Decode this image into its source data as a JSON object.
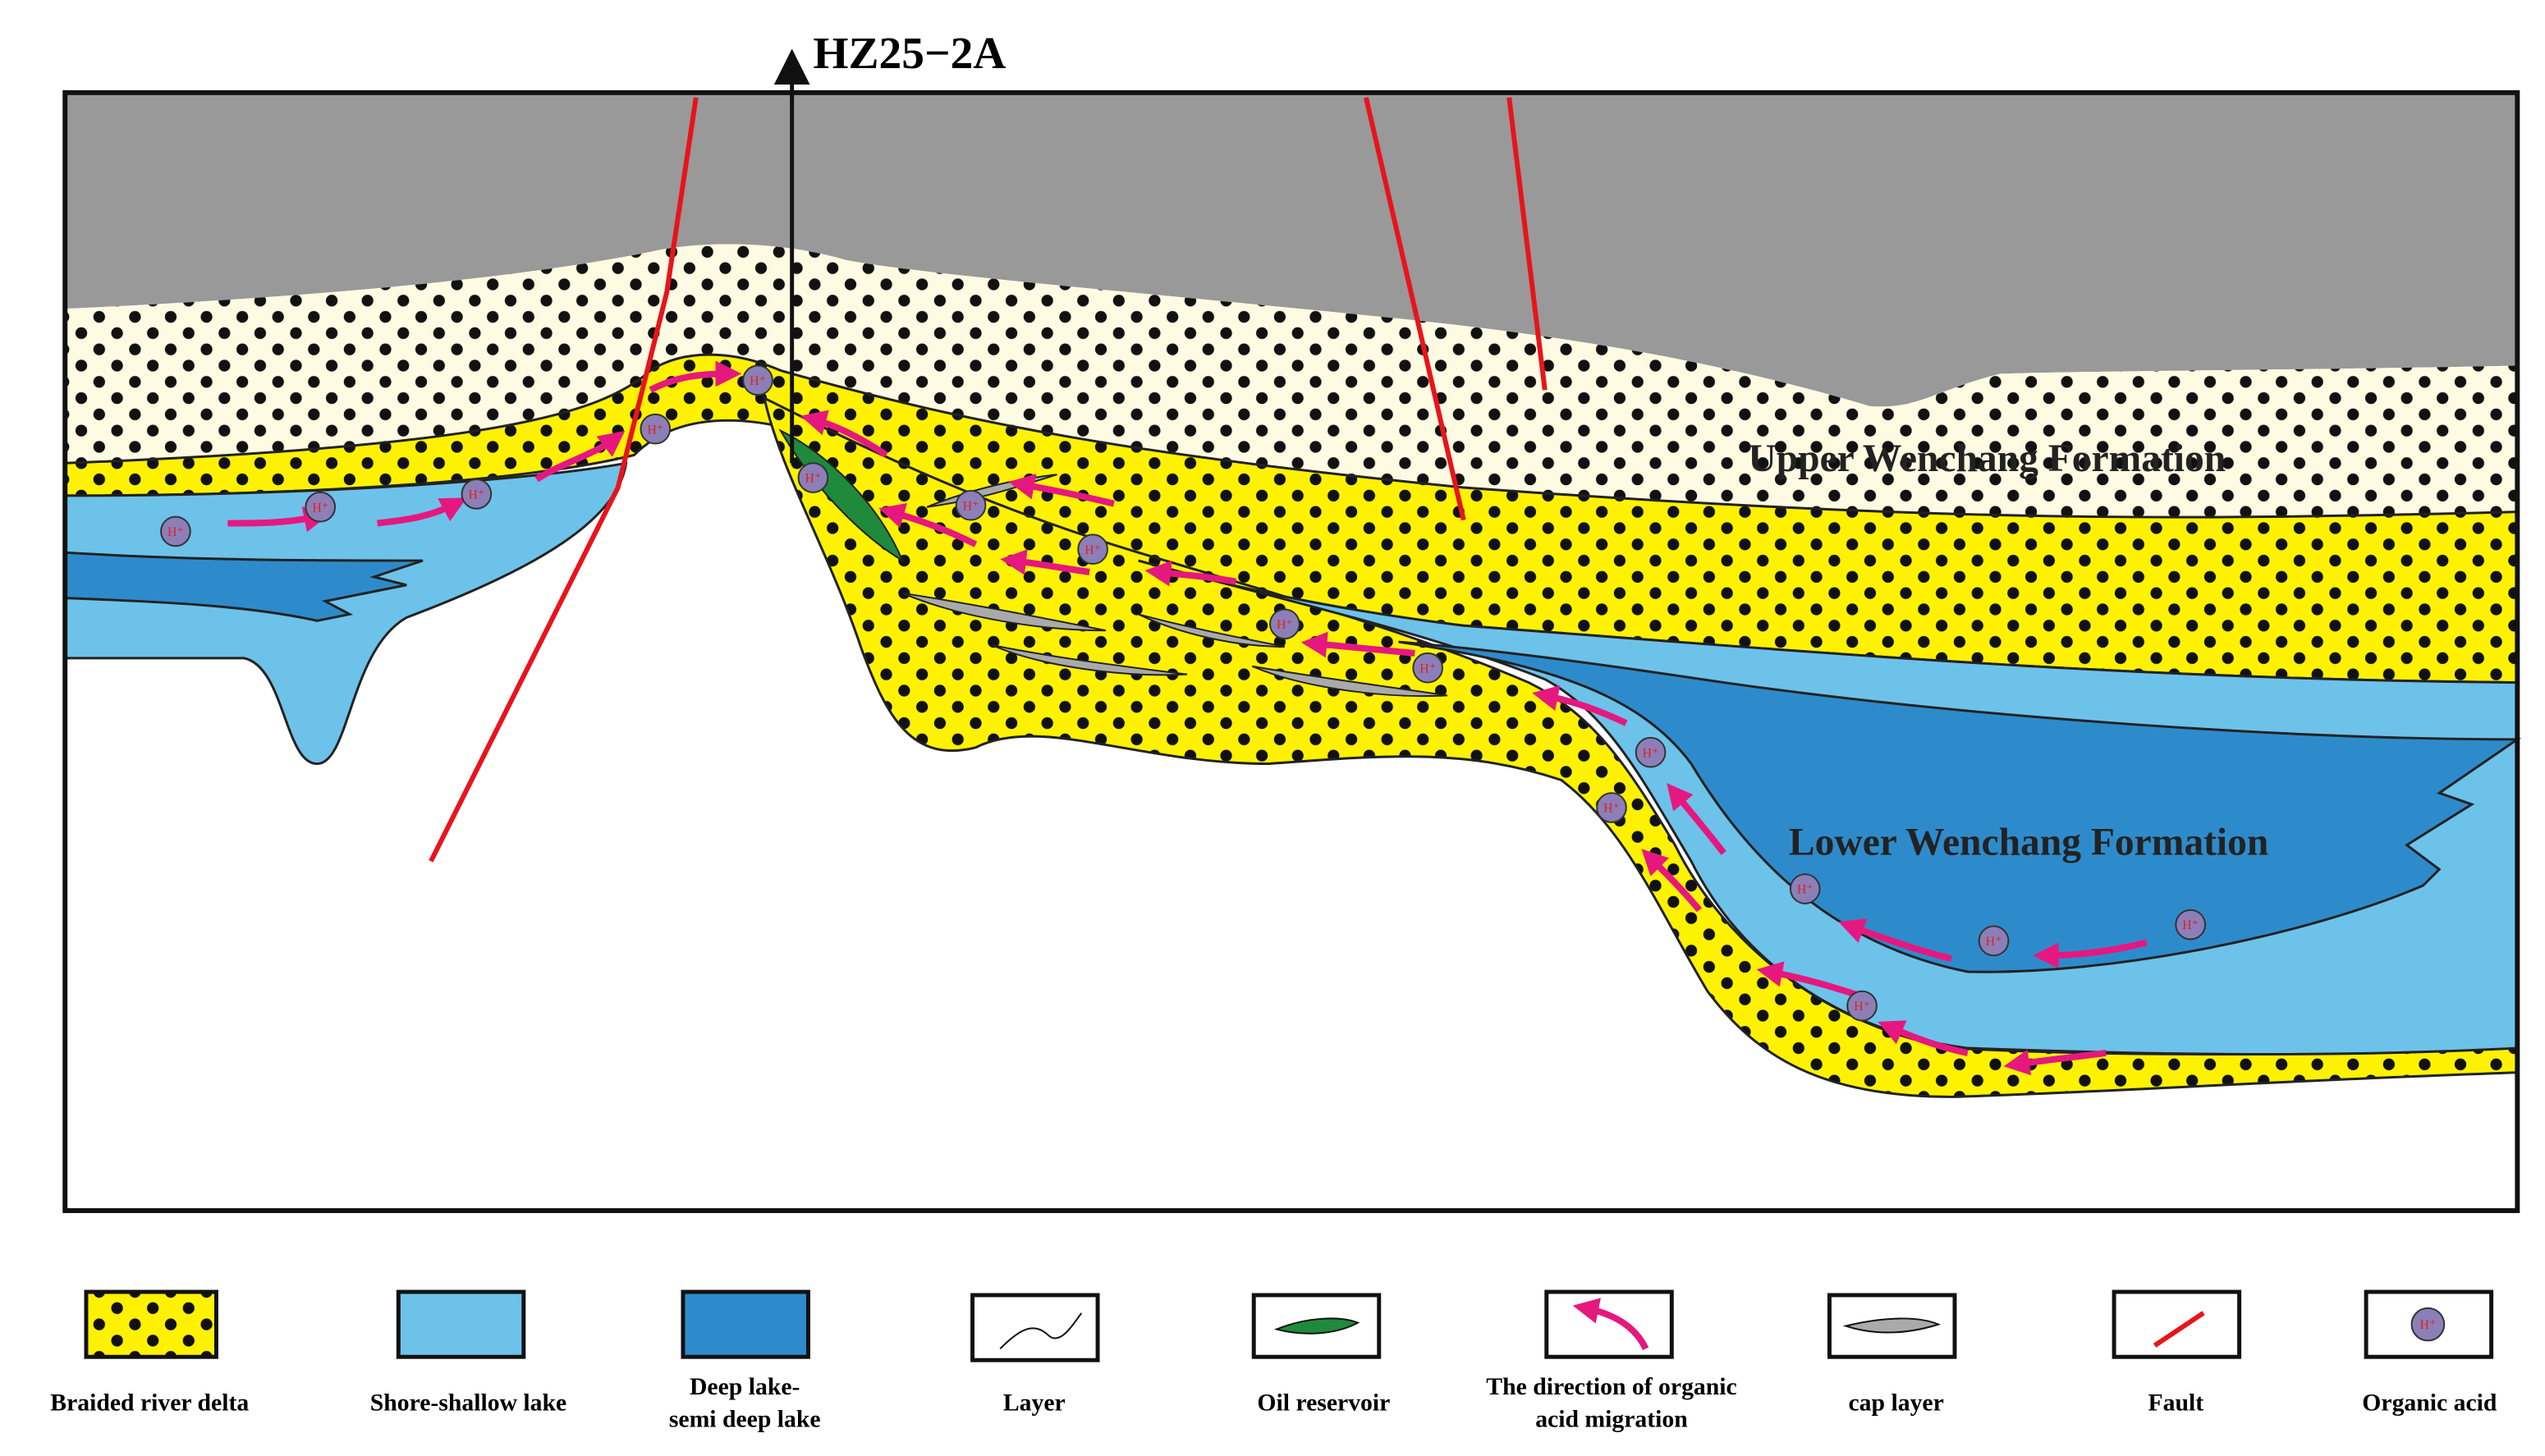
{
  "well": {
    "label": "HZ25−2A"
  },
  "formations": {
    "upper": "Upper Wenchang Formation",
    "lower": "Lower Wenchang Formation"
  },
  "organic_acid_symbol": "H⁺",
  "legend": [
    {
      "label_lines": [
        "Braided river delta"
      ]
    },
    {
      "label_lines": [
        "Shore-shallow lake"
      ]
    },
    {
      "label_lines": [
        "Deep lake-",
        "semi deep lake"
      ]
    },
    {
      "label_lines": [
        "Layer"
      ]
    },
    {
      "label_lines": [
        "Oil reservoir"
      ]
    },
    {
      "label_lines": [
        "The direction of organic",
        "acid migration"
      ]
    },
    {
      "label_lines": [
        "cap layer"
      ]
    },
    {
      "label_lines": [
        "Fault"
      ]
    },
    {
      "label_lines": [
        "Organic acid"
      ]
    }
  ]
}
